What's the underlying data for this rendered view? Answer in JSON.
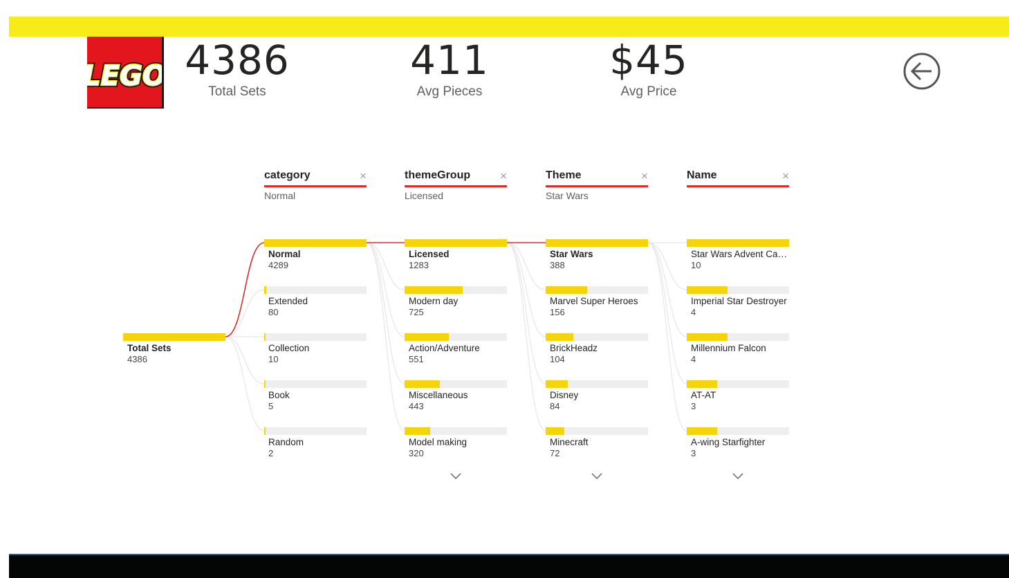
{
  "kpis": [
    {
      "value": "4386",
      "label": "Total Sets"
    },
    {
      "value": "411",
      "label": "Avg Pieces"
    },
    {
      "value": "$45",
      "label": "Avg Price"
    }
  ],
  "logo": {
    "text": "LEGO"
  },
  "colors": {
    "accent_yellow": "#f7eb18",
    "bar_yellow": "#f5d40a",
    "path_red": "#d62c27",
    "logo_red": "#e3161e"
  },
  "icons": {
    "back": "back-arrow-icon",
    "close": "close-icon",
    "expand": "chevron-down-icon"
  },
  "tree": {
    "root": {
      "label": "Total Sets",
      "count": "4386",
      "value": 4386
    },
    "columns": [
      {
        "name": "category",
        "close": "×",
        "selection": "Normal",
        "nodes": [
          {
            "label": "Normal",
            "count": "4289",
            "value": 4289,
            "selected": true
          },
          {
            "label": "Extended",
            "count": "80",
            "value": 80
          },
          {
            "label": "Collection",
            "count": "10",
            "value": 10
          },
          {
            "label": "Book",
            "count": "5",
            "value": 5
          },
          {
            "label": "Random",
            "count": "2",
            "value": 2
          }
        ]
      },
      {
        "name": "themeGroup",
        "close": "×",
        "selection": "Licensed",
        "nodes": [
          {
            "label": "Licensed",
            "count": "1283",
            "value": 1283,
            "selected": true
          },
          {
            "label": "Modern day",
            "count": "725",
            "value": 725
          },
          {
            "label": "Action/Adventure",
            "count": "551",
            "value": 551
          },
          {
            "label": "Miscellaneous",
            "count": "443",
            "value": 443
          },
          {
            "label": "Model making",
            "count": "320",
            "value": 320
          }
        ]
      },
      {
        "name": "Theme",
        "close": "×",
        "selection": "Star Wars",
        "nodes": [
          {
            "label": "Star Wars",
            "count": "388",
            "value": 388,
            "selected": true
          },
          {
            "label": "Marvel Super Heroes",
            "count": "156",
            "value": 156
          },
          {
            "label": "BrickHeadz",
            "count": "104",
            "value": 104
          },
          {
            "label": "Disney",
            "count": "84",
            "value": 84
          },
          {
            "label": "Minecraft",
            "count": "72",
            "value": 72
          }
        ]
      },
      {
        "name": "Name",
        "close": "×",
        "selection": "",
        "nodes": [
          {
            "label": "Star Wars Advent Cale...",
            "count": "10",
            "value": 10
          },
          {
            "label": "Imperial Star Destroyer",
            "count": "4",
            "value": 4
          },
          {
            "label": "Millennium Falcon",
            "count": "4",
            "value": 4
          },
          {
            "label": "AT-AT",
            "count": "3",
            "value": 3
          },
          {
            "label": "A-wing Starfighter",
            "count": "3",
            "value": 3
          }
        ]
      }
    ]
  }
}
